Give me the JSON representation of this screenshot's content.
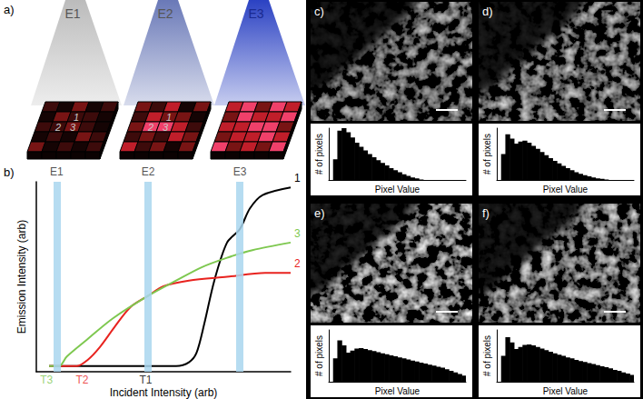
{
  "panel_a": {
    "panel": "a)",
    "illuminations": [
      "E1",
      "E2",
      "E3"
    ],
    "pixel_labels": [
      "1",
      "2",
      "3"
    ]
  },
  "chart_data": [
    {
      "type": "line",
      "panel": "b)",
      "x_label": "Incident Intensity (arb)",
      "y_label": "Emission Intensity (arb)",
      "xlim": [
        0,
        100
      ],
      "ylim": [
        0,
        100
      ],
      "tick_labels": false,
      "grid": false,
      "series": [
        {
          "name": "1",
          "color": "#000000",
          "x": [
            5,
            20,
            40,
            55,
            60,
            63,
            66,
            70,
            75,
            80,
            84,
            89,
            100
          ],
          "values": [
            3,
            3,
            3,
            3,
            5,
            10,
            25,
            48,
            68,
            75,
            86,
            93,
            97
          ]
        },
        {
          "name": "2",
          "color": "#e8231f",
          "x": [
            5,
            16,
            20,
            25,
            31,
            37,
            44,
            50,
            60,
            75,
            90,
            100
          ],
          "values": [
            3,
            3,
            6,
            13,
            24,
            34,
            40,
            45,
            48,
            50,
            52,
            52
          ]
        },
        {
          "name": "3",
          "color": "#7ec850",
          "x": [
            5,
            9,
            12,
            20,
            30,
            44,
            55,
            65,
            75,
            85,
            100
          ],
          "values": [
            3,
            3,
            8,
            17,
            28,
            40,
            48,
            55,
            60,
            64,
            68
          ]
        }
      ],
      "thresholds": [
        {
          "label": "T3",
          "x": 4,
          "color": "#7ec850"
        },
        {
          "label": "T2",
          "x": 18,
          "color": "#e8231f"
        },
        {
          "label": "T1",
          "x": 43,
          "color": "#000000"
        }
      ],
      "bands": [
        {
          "label": "E1",
          "x": 8
        },
        {
          "label": "E2",
          "x": 44
        },
        {
          "label": "E3",
          "x": 80
        }
      ]
    },
    {
      "type": "histogram",
      "panel": "c)",
      "x_label": "Pixel Value",
      "y_label": "# of pixels",
      "bins": [
        0,
        8,
        16,
        24,
        32,
        40,
        48,
        56,
        64,
        72,
        80,
        88,
        96,
        104,
        112,
        120,
        128,
        136,
        144,
        152,
        160,
        168,
        176,
        184,
        192,
        200,
        208,
        216,
        224,
        232,
        240,
        248,
        256
      ],
      "counts": [
        0,
        40,
        95,
        100,
        92,
        82,
        72,
        64,
        57,
        50,
        44,
        38,
        33,
        28,
        23,
        19,
        15,
        11,
        8,
        5,
        3,
        1,
        0,
        0,
        0,
        0,
        0,
        0,
        0,
        0,
        0,
        0
      ],
      "xlim": [
        0,
        256
      ],
      "ylim": [
        0,
        100
      ],
      "tick_labels": false,
      "grid": false,
      "color": "#000000"
    },
    {
      "type": "histogram",
      "panel": "d)",
      "x_label": "Pixel Value",
      "y_label": "# of pixels",
      "bins": [
        0,
        8,
        16,
        24,
        32,
        40,
        48,
        56,
        64,
        72,
        80,
        88,
        96,
        104,
        112,
        120,
        128,
        136,
        144,
        152,
        160,
        168,
        176,
        184,
        192,
        200,
        208,
        216,
        224,
        232,
        240,
        248,
        256
      ],
      "counts": [
        0,
        50,
        88,
        80,
        70,
        74,
        76,
        72,
        66,
        60,
        54,
        48,
        42,
        37,
        32,
        27,
        23,
        19,
        15,
        12,
        9,
        7,
        5,
        3,
        2,
        1,
        0,
        0,
        0,
        0,
        0,
        0
      ],
      "xlim": [
        0,
        256
      ],
      "ylim": [
        0,
        100
      ],
      "tick_labels": false,
      "grid": false,
      "color": "#000000"
    },
    {
      "type": "histogram",
      "panel": "e)",
      "x_label": "Pixel Value",
      "y_label": "# of pixels",
      "bins": [
        0,
        8,
        16,
        24,
        32,
        40,
        48,
        56,
        64,
        72,
        80,
        88,
        96,
        104,
        112,
        120,
        128,
        136,
        144,
        152,
        160,
        168,
        176,
        184,
        192,
        200,
        208,
        216,
        224,
        232,
        240,
        248,
        256
      ],
      "counts": [
        0,
        45,
        80,
        70,
        56,
        60,
        64,
        65,
        63,
        61,
        59,
        57,
        55,
        53,
        51,
        49,
        47,
        45,
        43,
        41,
        39,
        37,
        35,
        33,
        31,
        29,
        27,
        24,
        21,
        18,
        15,
        12
      ],
      "xlim": [
        0,
        256
      ],
      "ylim": [
        0,
        100
      ],
      "tick_labels": false,
      "grid": false,
      "color": "#000000"
    },
    {
      "type": "histogram",
      "panel": "f)",
      "x_label": "Pixel Value",
      "y_label": "# of pixels",
      "bins": [
        0,
        8,
        16,
        24,
        32,
        40,
        48,
        56,
        64,
        72,
        80,
        88,
        96,
        104,
        112,
        120,
        128,
        136,
        144,
        152,
        160,
        168,
        176,
        184,
        192,
        200,
        208,
        216,
        224,
        232,
        240,
        248,
        256
      ],
      "counts": [
        0,
        50,
        86,
        76,
        63,
        67,
        71,
        72,
        70,
        67,
        64,
        61,
        58,
        55,
        52,
        50,
        47,
        45,
        42,
        40,
        38,
        36,
        34,
        32,
        30,
        28,
        26,
        23,
        21,
        18,
        16,
        13
      ],
      "xlim": [
        0,
        256
      ],
      "ylim": [
        0,
        100
      ],
      "tick_labels": false,
      "grid": false,
      "color": "#000000"
    }
  ]
}
